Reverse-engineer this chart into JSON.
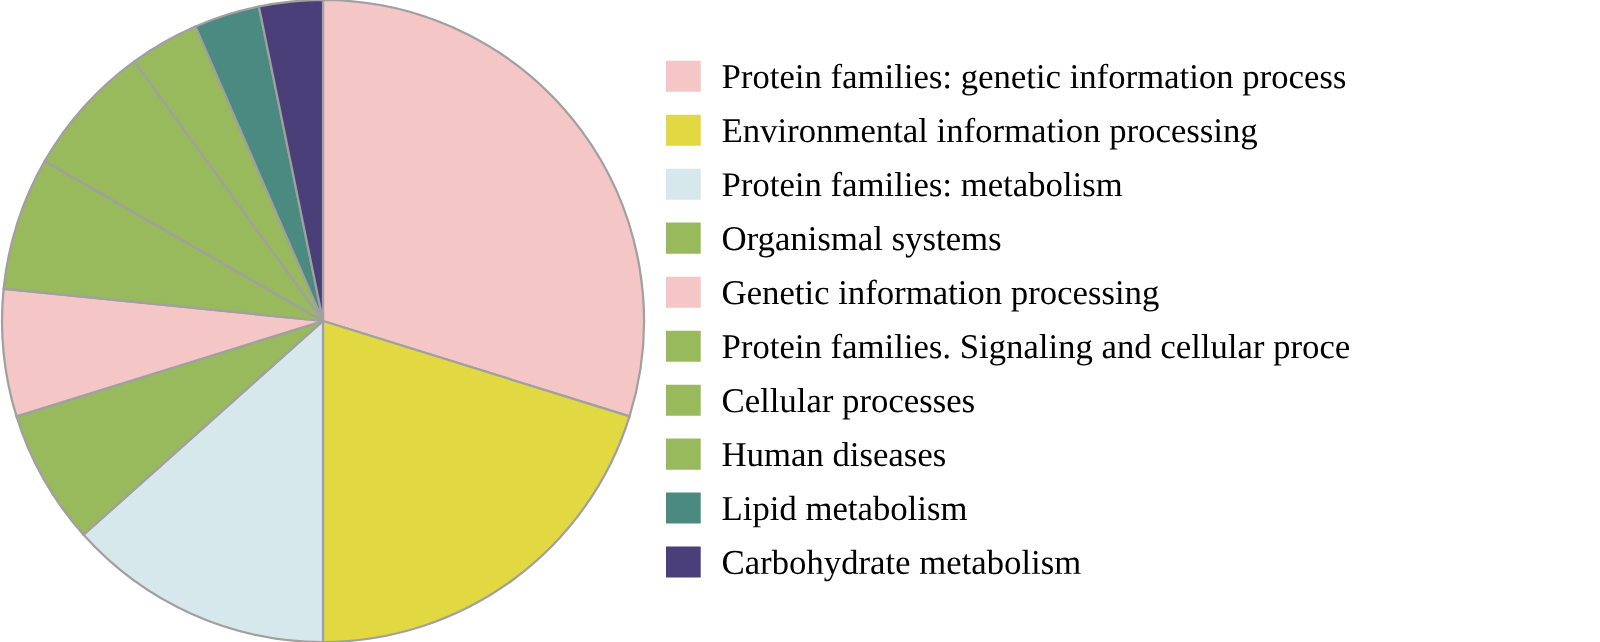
{
  "chart_data": {
    "type": "pie",
    "categories": [
      "Protein families: genetic information process",
      "Environmental information processing",
      "Protein families: metabolism",
      "Organismal systems",
      "Genetic information processing",
      "Protein families. Signaling and cellular proce",
      "Cellular processes",
      "Human diseases",
      "Lipid metabolism",
      "Carbohydrate metabolism"
    ],
    "values": [
      29.8,
      20.2,
      13.4,
      6.8,
      6.4,
      6.7,
      6.7,
      3.5,
      3.3,
      3.2
    ],
    "colors": [
      "#f4c6c6",
      "#e2d842",
      "#d6e8ec",
      "#98b95c",
      "#f4c6c6",
      "#98b95c",
      "#98b95c",
      "#98b95c",
      "#4b8a80",
      "#4a3f78"
    ],
    "legend": "right"
  }
}
